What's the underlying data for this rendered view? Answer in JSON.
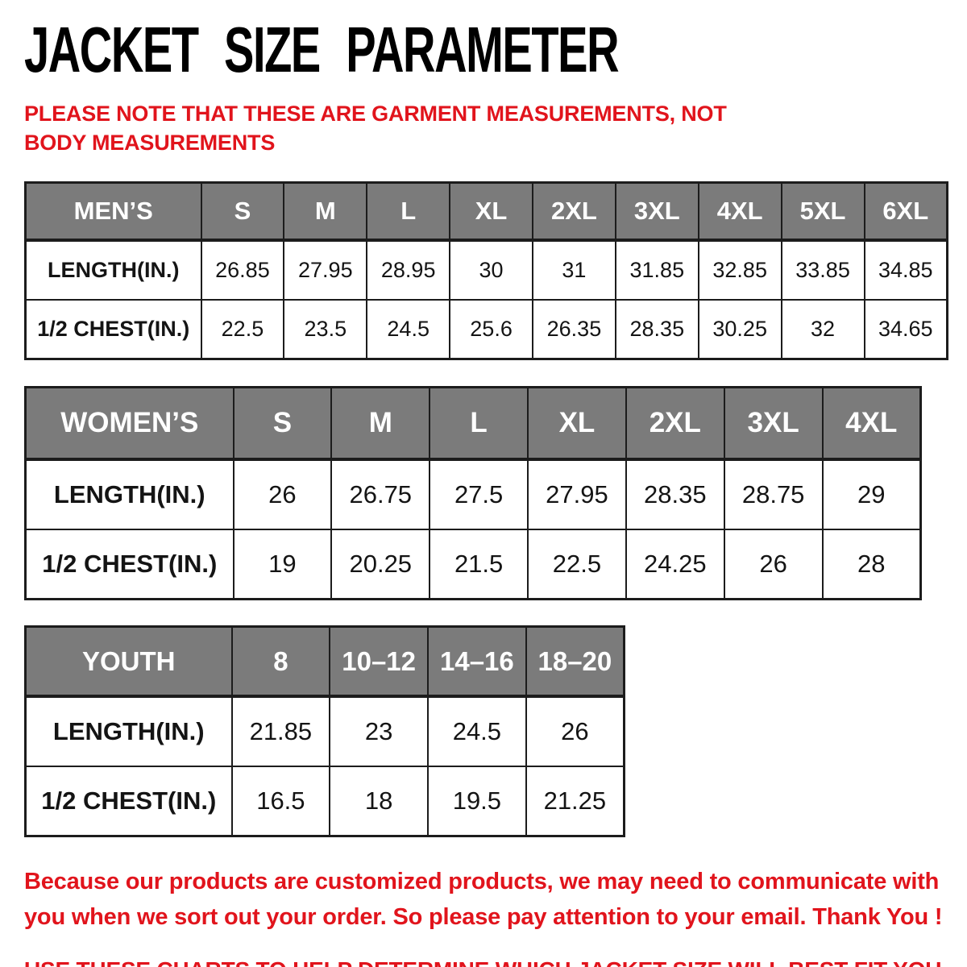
{
  "page": {
    "title": "JACKET SIZE PARAMETER",
    "note": "PLEASE NOTE THAT THESE ARE GARMENT MEASUREMENTS, NOT BODY MEASUREMENTS",
    "footer_note": "Because our products are customized products, we may need to communicate with you when we sort out your order. So please pay attention to your email. Thank You !",
    "footer_instruction": "USE THESE CHARTS TO HELP DETERMINE WHICH JACKET SIZE WILL BEST FIT YOU."
  },
  "colors": {
    "accent_red": "#e1141c",
    "header_bg": "#7b7b7b",
    "header_text": "#ffffff",
    "border": "#1c1c1c",
    "title_text": "#000000"
  },
  "tables": {
    "mens": {
      "header_label": "MEN’S",
      "sizes": [
        "S",
        "M",
        "L",
        "XL",
        "2XL",
        "3XL",
        "4XL",
        "5XL",
        "6XL"
      ],
      "rows": [
        {
          "label": "LENGTH(IN.)",
          "values": [
            "26.85",
            "27.95",
            "28.95",
            "30",
            "31",
            "31.85",
            "32.85",
            "33.85",
            "34.85"
          ]
        },
        {
          "label": "1/2 CHEST(IN.)",
          "values": [
            "22.5",
            "23.5",
            "24.5",
            "25.6",
            "26.35",
            "28.35",
            "30.25",
            "32",
            "34.65"
          ]
        }
      ]
    },
    "womens": {
      "header_label": "WOMEN’S",
      "sizes": [
        "S",
        "M",
        "L",
        "XL",
        "2XL",
        "3XL",
        "4XL"
      ],
      "rows": [
        {
          "label": "LENGTH(IN.)",
          "values": [
            "26",
            "26.75",
            "27.5",
            "27.95",
            "28.35",
            "28.75",
            "29"
          ]
        },
        {
          "label": "1/2 CHEST(IN.)",
          "values": [
            "19",
            "20.25",
            "21.5",
            "22.5",
            "24.25",
            "26",
            "28"
          ]
        }
      ]
    },
    "youth": {
      "header_label": "YOUTH",
      "sizes": [
        "8",
        "10–12",
        "14–16",
        "18–20"
      ],
      "rows": [
        {
          "label": "LENGTH(IN.)",
          "values": [
            "21.85",
            "23",
            "24.5",
            "26"
          ]
        },
        {
          "label": "1/2 CHEST(IN.)",
          "values": [
            "16.5",
            "18",
            "19.5",
            "21.25"
          ]
        }
      ]
    }
  }
}
